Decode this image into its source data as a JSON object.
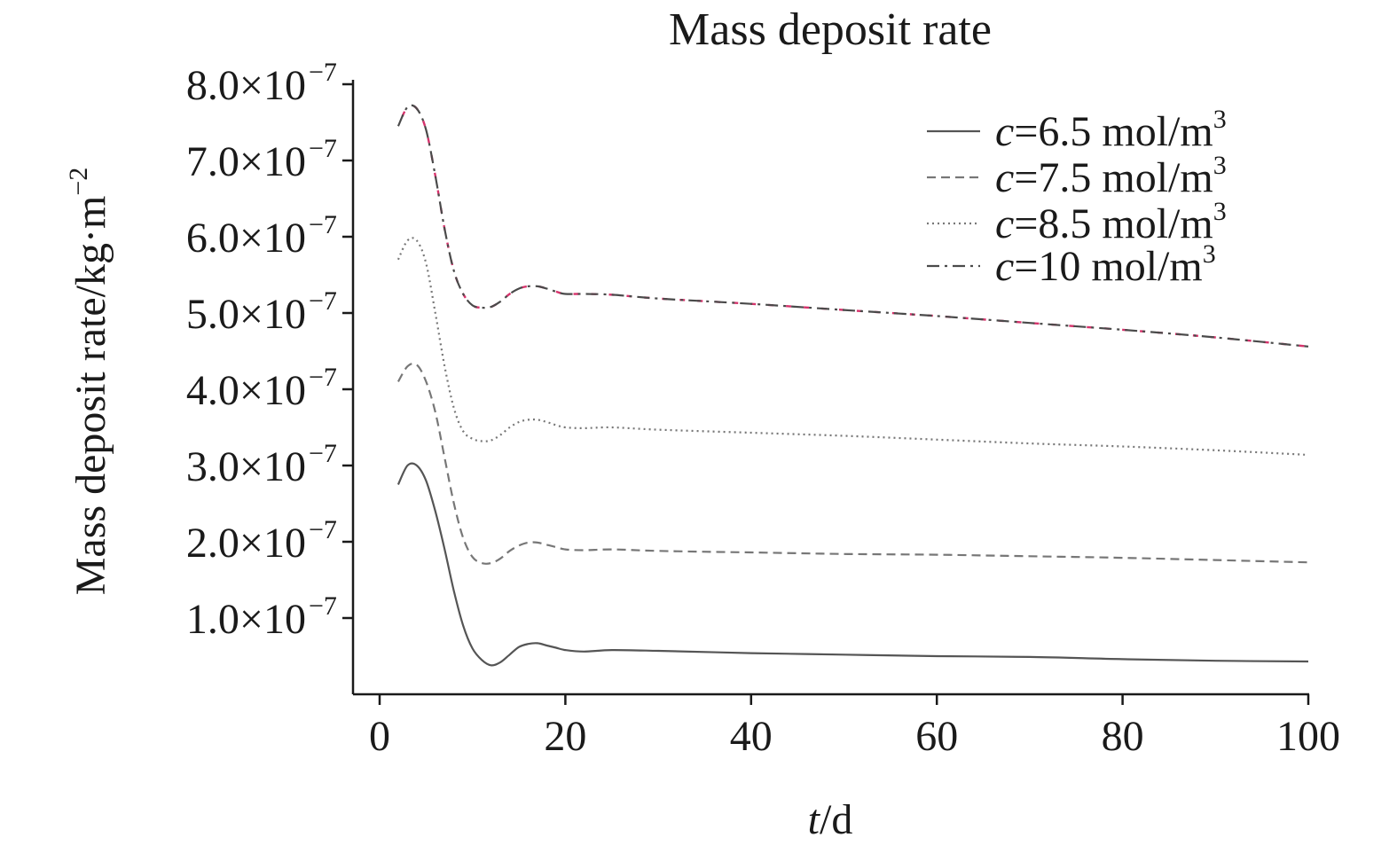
{
  "chart_data": {
    "type": "line",
    "title": "Mass deposit rate",
    "xlabel": "t/d",
    "xlabel_italic": "t",
    "xlabel_rest": "/d",
    "ylabel": "Mass deposit rate/kg·m−2",
    "ylabel_main": "Mass deposit rate/kg·m",
    "ylabel_sup": "−2",
    "xlim": [
      -3,
      100
    ],
    "ylim": [
      0.0,
      8.0
    ],
    "y_scale_note": "values ×10^-7",
    "x_ticks": [
      0,
      20,
      40,
      60,
      80,
      100
    ],
    "x_tick_labels": [
      "0",
      "20",
      "40",
      "60",
      "80",
      "100"
    ],
    "y_ticks": [
      1,
      2,
      3,
      4,
      5,
      6,
      7,
      8
    ],
    "y_tick_labels": [
      {
        "base": "1.0×10",
        "exp": "−7"
      },
      {
        "base": "2.0×10",
        "exp": "−7"
      },
      {
        "base": "3.0×10",
        "exp": "−7"
      },
      {
        "base": "4.0×10",
        "exp": "−7"
      },
      {
        "base": "5.0×10",
        "exp": "−7"
      },
      {
        "base": "6.0×10",
        "exp": "−7"
      },
      {
        "base": "7.0×10",
        "exp": "−7"
      },
      {
        "base": "8.0×10",
        "exp": "−7"
      }
    ],
    "legend_position": "top-right",
    "grid": false,
    "series": [
      {
        "name": "c=6.5 mol/m3",
        "legend_italic": "c",
        "legend_rest": "=6.5 mol/m",
        "legend_sup": "3",
        "color": "#555555",
        "dash": "solid",
        "x": [
          2,
          3,
          4,
          5,
          6,
          7,
          8,
          9,
          10,
          11,
          12,
          13,
          14,
          15,
          16,
          17,
          18,
          19,
          20,
          22,
          25,
          30,
          40,
          50,
          60,
          70,
          80,
          90,
          100
        ],
        "y": [
          2.75,
          3.0,
          3.0,
          2.8,
          2.4,
          1.9,
          1.35,
          0.9,
          0.6,
          0.45,
          0.38,
          0.42,
          0.52,
          0.62,
          0.66,
          0.67,
          0.64,
          0.61,
          0.58,
          0.56,
          0.58,
          0.57,
          0.54,
          0.52,
          0.5,
          0.49,
          0.46,
          0.44,
          0.43
        ]
      },
      {
        "name": "c=7.5 mol/m3",
        "legend_italic": "c",
        "legend_rest": "=7.5 mol/m",
        "legend_sup": "3",
        "color": "#777777",
        "dash": "dashed",
        "x": [
          2,
          3,
          4,
          5,
          6,
          7,
          8,
          9,
          10,
          11,
          12,
          13,
          14,
          15,
          16,
          17,
          18,
          19,
          20,
          22,
          25,
          30,
          40,
          50,
          60,
          70,
          80,
          90,
          100
        ],
        "y": [
          4.1,
          4.3,
          4.32,
          4.1,
          3.7,
          3.1,
          2.5,
          2.05,
          1.8,
          1.72,
          1.72,
          1.78,
          1.88,
          1.95,
          1.99,
          1.99,
          1.96,
          1.93,
          1.9,
          1.89,
          1.9,
          1.88,
          1.86,
          1.84,
          1.83,
          1.81,
          1.79,
          1.76,
          1.73
        ]
      },
      {
        "name": "c=8.5 mol/m3",
        "legend_italic": "c",
        "legend_rest": "=8.5 mol/m",
        "legend_sup": "3",
        "color": "#777777",
        "dash": "dotted",
        "x": [
          2,
          3,
          4,
          5,
          6,
          7,
          8,
          9,
          10,
          11,
          12,
          13,
          14,
          15,
          16,
          17,
          18,
          19,
          20,
          22,
          25,
          30,
          40,
          50,
          60,
          70,
          80,
          90,
          100
        ],
        "y": [
          5.7,
          5.95,
          5.95,
          5.65,
          5.0,
          4.3,
          3.75,
          3.45,
          3.35,
          3.32,
          3.33,
          3.4,
          3.5,
          3.57,
          3.6,
          3.6,
          3.57,
          3.53,
          3.5,
          3.49,
          3.5,
          3.47,
          3.43,
          3.39,
          3.34,
          3.29,
          3.25,
          3.2,
          3.14
        ]
      },
      {
        "name": "c=10 mol/m3",
        "legend_italic": "c",
        "legend_rest": "=10 mol/m",
        "legend_sup": "3",
        "color": "#4a4a4a",
        "accent_color": "#d6336c",
        "dash": "dashdot",
        "x": [
          2,
          3,
          4,
          5,
          6,
          7,
          8,
          9,
          10,
          11,
          12,
          13,
          14,
          15,
          16,
          17,
          18,
          19,
          20,
          22,
          25,
          30,
          40,
          50,
          60,
          70,
          80,
          90,
          100
        ],
        "y": [
          7.45,
          7.7,
          7.68,
          7.4,
          6.8,
          6.1,
          5.55,
          5.25,
          5.1,
          5.07,
          5.08,
          5.15,
          5.25,
          5.32,
          5.35,
          5.35,
          5.32,
          5.28,
          5.25,
          5.25,
          5.24,
          5.19,
          5.12,
          5.04,
          4.96,
          4.87,
          4.78,
          4.68,
          4.56
        ]
      }
    ]
  }
}
